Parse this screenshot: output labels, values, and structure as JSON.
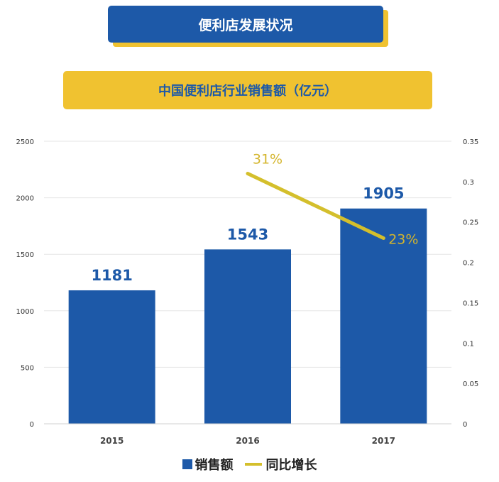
{
  "header": {
    "title": "便利店发展状况",
    "subtitle": "中国便利店行业销售额（亿元）"
  },
  "colors": {
    "bar": "#1d59a8",
    "line": "#d4bf2c",
    "banner_blue": "#1d59a8",
    "banner_yellow": "#f0c230"
  },
  "chart_data": {
    "type": "bar",
    "title": "中国便利店行业销售额（亿元）",
    "categories": [
      "2015",
      "2016",
      "2017"
    ],
    "series": [
      {
        "name": "销售额",
        "type": "bar",
        "axis": "left",
        "values": [
          1181,
          1543,
          1905
        ],
        "labels": [
          "1181",
          "1543",
          "1905"
        ]
      },
      {
        "name": "同比增长",
        "type": "line",
        "axis": "right",
        "x": [
          "2016",
          "2017"
        ],
        "values": [
          0.31,
          0.23
        ],
        "labels": [
          "31%",
          "23%"
        ]
      }
    ],
    "ylim": [
      0,
      2500
    ],
    "y_ticks": [
      "0",
      "500",
      "1000",
      "1500",
      "2000",
      "2500"
    ],
    "y2lim": [
      0,
      0.35
    ],
    "y2_ticks": [
      "0",
      "0.05",
      "0.1",
      "0.15",
      "0.2",
      "0.25",
      "0.3",
      "0.35"
    ],
    "grid": true,
    "legend_position": "bottom"
  }
}
